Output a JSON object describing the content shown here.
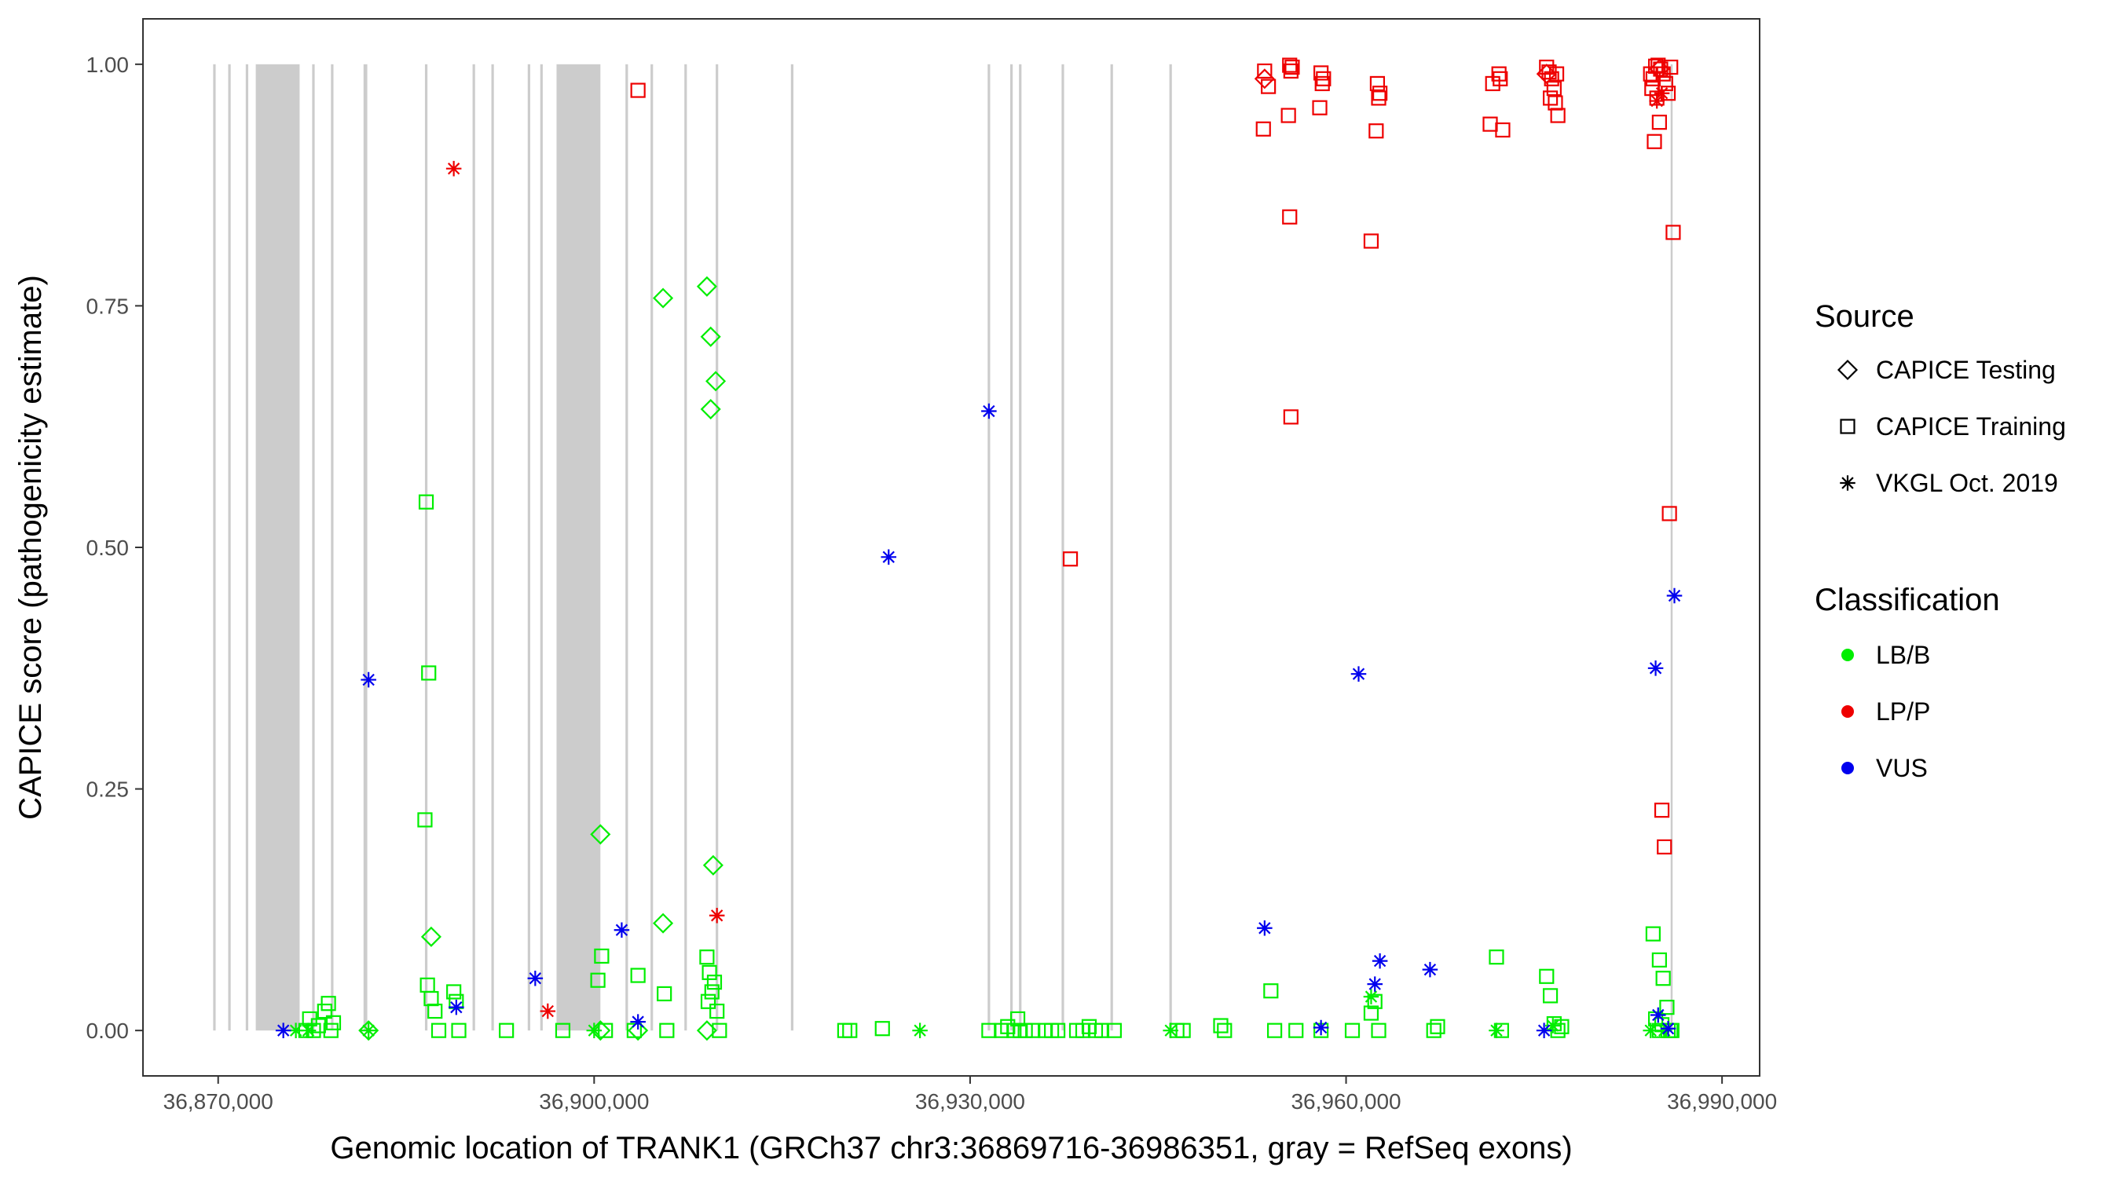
{
  "chart_data": {
    "type": "scatter",
    "xlabel": "Genomic location of TRANK1 (GRCh37 chr3:36869716-36986351, gray = RefSeq exons)",
    "ylabel": "CAPICE score (pathogenicity estimate)",
    "xlim": [
      36864000,
      36993000
    ],
    "ylim": [
      -0.047,
      1.047
    ],
    "x_ticks": [
      36870000,
      36900000,
      36930000,
      36960000,
      36990000
    ],
    "x_tick_labels": [
      "36,870,000",
      "36,900,000",
      "36,930,000",
      "36,960,000",
      "36,990,000"
    ],
    "y_ticks": [
      0,
      0.25,
      0.5,
      0.75,
      1
    ],
    "y_tick_labels": [
      "0.00",
      "0.25",
      "0.50",
      "0.75",
      "1.00"
    ],
    "grid": false,
    "exons": [
      [
        36869600,
        36869800
      ],
      [
        36870800,
        36871000
      ],
      [
        36872200,
        36872400
      ],
      [
        36873000,
        36876500
      ],
      [
        36877500,
        36877700
      ],
      [
        36879000,
        36879200
      ],
      [
        36881600,
        36881900
      ],
      [
        36886500,
        36886700
      ],
      [
        36890300,
        36890500
      ],
      [
        36891800,
        36892000
      ],
      [
        36894700,
        36894900
      ],
      [
        36895700,
        36895900
      ],
      [
        36897000,
        36900500
      ],
      [
        36902500,
        36902700
      ],
      [
        36904500,
        36904700
      ],
      [
        36907200,
        36907400
      ],
      [
        36909700,
        36909900
      ],
      [
        36915700,
        36915900
      ],
      [
        36931400,
        36931600
      ],
      [
        36933200,
        36933400
      ],
      [
        36933900,
        36934100
      ],
      [
        36937300,
        36937500
      ],
      [
        36941200,
        36941400
      ],
      [
        36945900,
        36946100
      ],
      [
        36985900,
        36986000
      ]
    ],
    "legend": {
      "placement": "right",
      "source_title": "Source",
      "source_items": [
        {
          "label": "CAPICE Testing",
          "shape": "diamond"
        },
        {
          "label": "CAPICE Training",
          "shape": "square"
        },
        {
          "label": "VKGL Oct. 2019",
          "shape": "asterisk"
        }
      ],
      "class_title": "Classification",
      "class_items": [
        {
          "label": "LB/B",
          "color": "#00ee00"
        },
        {
          "label": "LP/P",
          "color": "#ee0000"
        },
        {
          "label": "VUS",
          "color": "#0000ee"
        }
      ]
    },
    "series": [
      {
        "name": "LB/B — CAPICE Testing",
        "shape": "diamond",
        "color": "#00ee00",
        "x": [
          36882000,
          36887000,
          36900500,
          36905500,
          36909000,
          36909300,
          36909700,
          36909300,
          36905500,
          36909500,
          36900500,
          36903500,
          36909000
        ],
        "y": [
          0.0,
          0.097,
          0.203,
          0.758,
          0.77,
          0.718,
          0.672,
          0.643,
          0.111,
          0.171,
          0.0,
          0.0,
          0.0
        ]
      },
      {
        "name": "LB/B — CAPICE Training",
        "shape": "square",
        "color": "#00ee00",
        "x": [
          36877000,
          36877300,
          36877600,
          36878000,
          36878500,
          36878800,
          36879200,
          36879000,
          36886600,
          36886800,
          36886500,
          36886700,
          36887000,
          36887300,
          36887600,
          36888800,
          36889000,
          36889200,
          36893000,
          36897500,
          36900600,
          36900300,
          36900900,
          36903500,
          36903200,
          36905600,
          36905800,
          36909000,
          36909200,
          36909400,
          36909600,
          36909100,
          36909800,
          36910000,
          36920000,
          36920400,
          36923000,
          36931500,
          36932500,
          36933000,
          36933500,
          36933800,
          36934000,
          36934400,
          36935000,
          36936000,
          36936500,
          36937000,
          36938500,
          36939000,
          36939500,
          36940000,
          36940500,
          36941500,
          36946500,
          36947000,
          36950000,
          36950300,
          36954000,
          36954300,
          36956000,
          36958000,
          36960500,
          36962000,
          36962300,
          36962600,
          36967000,
          36967300,
          36972000,
          36972400,
          36976000,
          36976300,
          36976600,
          36976900,
          36977200,
          36984500,
          36985000,
          36985300,
          36985600,
          36985900,
          36984700,
          36985700,
          36986000,
          36985200,
          36985000
        ],
        "y": [
          0.0,
          0.012,
          0.0,
          0.005,
          0.02,
          0.028,
          0.008,
          0.0,
          0.547,
          0.37,
          0.218,
          0.047,
          0.033,
          0.02,
          0.0,
          0.04,
          0.03,
          0.0,
          0.0,
          0.0,
          0.077,
          0.052,
          0.0,
          0.057,
          0.0,
          0.038,
          0.0,
          0.076,
          0.06,
          0.04,
          0.05,
          0.03,
          0.02,
          0.0,
          0.0,
          0.0,
          0.002,
          0.0,
          0.0,
          0.004,
          0.0,
          0.012,
          0.0,
          0.0,
          0.0,
          0.0,
          0.0,
          0.0,
          0.0,
          0.0,
          0.004,
          0.0,
          0.0,
          0.0,
          0.0,
          0.0,
          0.005,
          0.0,
          0.041,
          0.0,
          0.0,
          0.0,
          0.0,
          0.018,
          0.03,
          0.0,
          0.0,
          0.004,
          0.076,
          0.0,
          0.056,
          0.036,
          0.007,
          0.0,
          0.004,
          0.1,
          0.073,
          0.054,
          0.024,
          0.0,
          0.012,
          0.0,
          0.0,
          0.006,
          0.0
        ]
      },
      {
        "name": "LB/B — VKGL Oct. 2019",
        "shape": "asterisk",
        "color": "#00ee00",
        "x": [
          36876200,
          36877200,
          36882000,
          36900000,
          36926000,
          36946000,
          36962000,
          36972000,
          36976500,
          36984300,
          36985400
        ],
        "y": [
          0.0,
          0.0,
          0.0,
          0.0,
          0.0,
          0.0,
          0.035,
          0.0,
          0.005,
          0.0,
          0.0
        ]
      },
      {
        "name": "LP/P — CAPICE Testing",
        "shape": "diamond",
        "color": "#ee0000",
        "x": [
          36953500,
          36976000,
          36985000
        ],
        "y": [
          0.985,
          0.99,
          0.995
        ]
      },
      {
        "name": "LP/P — CAPICE Training",
        "shape": "square",
        "color": "#ee0000",
        "x": [
          36903500,
          36938000,
          36953500,
          36953800,
          36953400,
          36955500,
          36955700,
          36955600,
          36955400,
          36955500,
          36955600,
          36958000,
          36958200,
          36958100,
          36957900,
          36962500,
          36962700,
          36962600,
          36962400,
          36962000,
          36971500,
          36972200,
          36972500,
          36971700,
          36972300,
          36976000,
          36976200,
          36976400,
          36976600,
          36976800,
          36976300,
          36976700,
          36976900,
          36984300,
          36984500,
          36984700,
          36984900,
          36985100,
          36985300,
          36985500,
          36985700,
          36985900,
          36984600,
          36985000,
          36984400,
          36984800,
          36985200,
          36986100,
          36985400,
          36985800
        ],
        "y": [
          0.973,
          0.488,
          0.993,
          0.977,
          0.933,
          0.999,
          0.997,
          0.993,
          0.947,
          0.842,
          0.635,
          0.991,
          0.985,
          0.98,
          0.955,
          0.98,
          0.97,
          0.965,
          0.931,
          0.817,
          0.938,
          0.99,
          0.932,
          0.98,
          0.985,
          0.997,
          0.992,
          0.985,
          0.975,
          0.99,
          0.965,
          0.96,
          0.947,
          0.99,
          0.985,
          0.998,
          0.999,
          0.995,
          0.99,
          0.98,
          0.97,
          0.997,
          0.92,
          0.94,
          0.975,
          0.965,
          0.228,
          0.826,
          0.19,
          0.535
        ]
      },
      {
        "name": "LP/P — VKGL Oct. 2019",
        "shape": "asterisk",
        "color": "#ee0000",
        "x": [
          36888800,
          36896300,
          36909800,
          36984800,
          36985200
        ],
        "y": [
          0.892,
          0.02,
          0.119,
          0.962,
          0.97
        ]
      },
      {
        "name": "VUS — VKGL Oct. 2019",
        "shape": "asterisk",
        "color": "#0000ee",
        "x": [
          36875200,
          36882000,
          36889000,
          36895300,
          36902200,
          36903500,
          36923500,
          36931500,
          36953500,
          36958000,
          36961000,
          36962300,
          36962700,
          36966700,
          36975800,
          36984700,
          36984900,
          36985700,
          36986200
        ],
        "y": [
          0.0,
          0.363,
          0.024,
          0.054,
          0.104,
          0.009,
          0.49,
          0.641,
          0.106,
          0.003,
          0.369,
          0.048,
          0.072,
          0.063,
          0.0,
          0.375,
          0.016,
          0.002,
          0.45
        ]
      }
    ]
  }
}
